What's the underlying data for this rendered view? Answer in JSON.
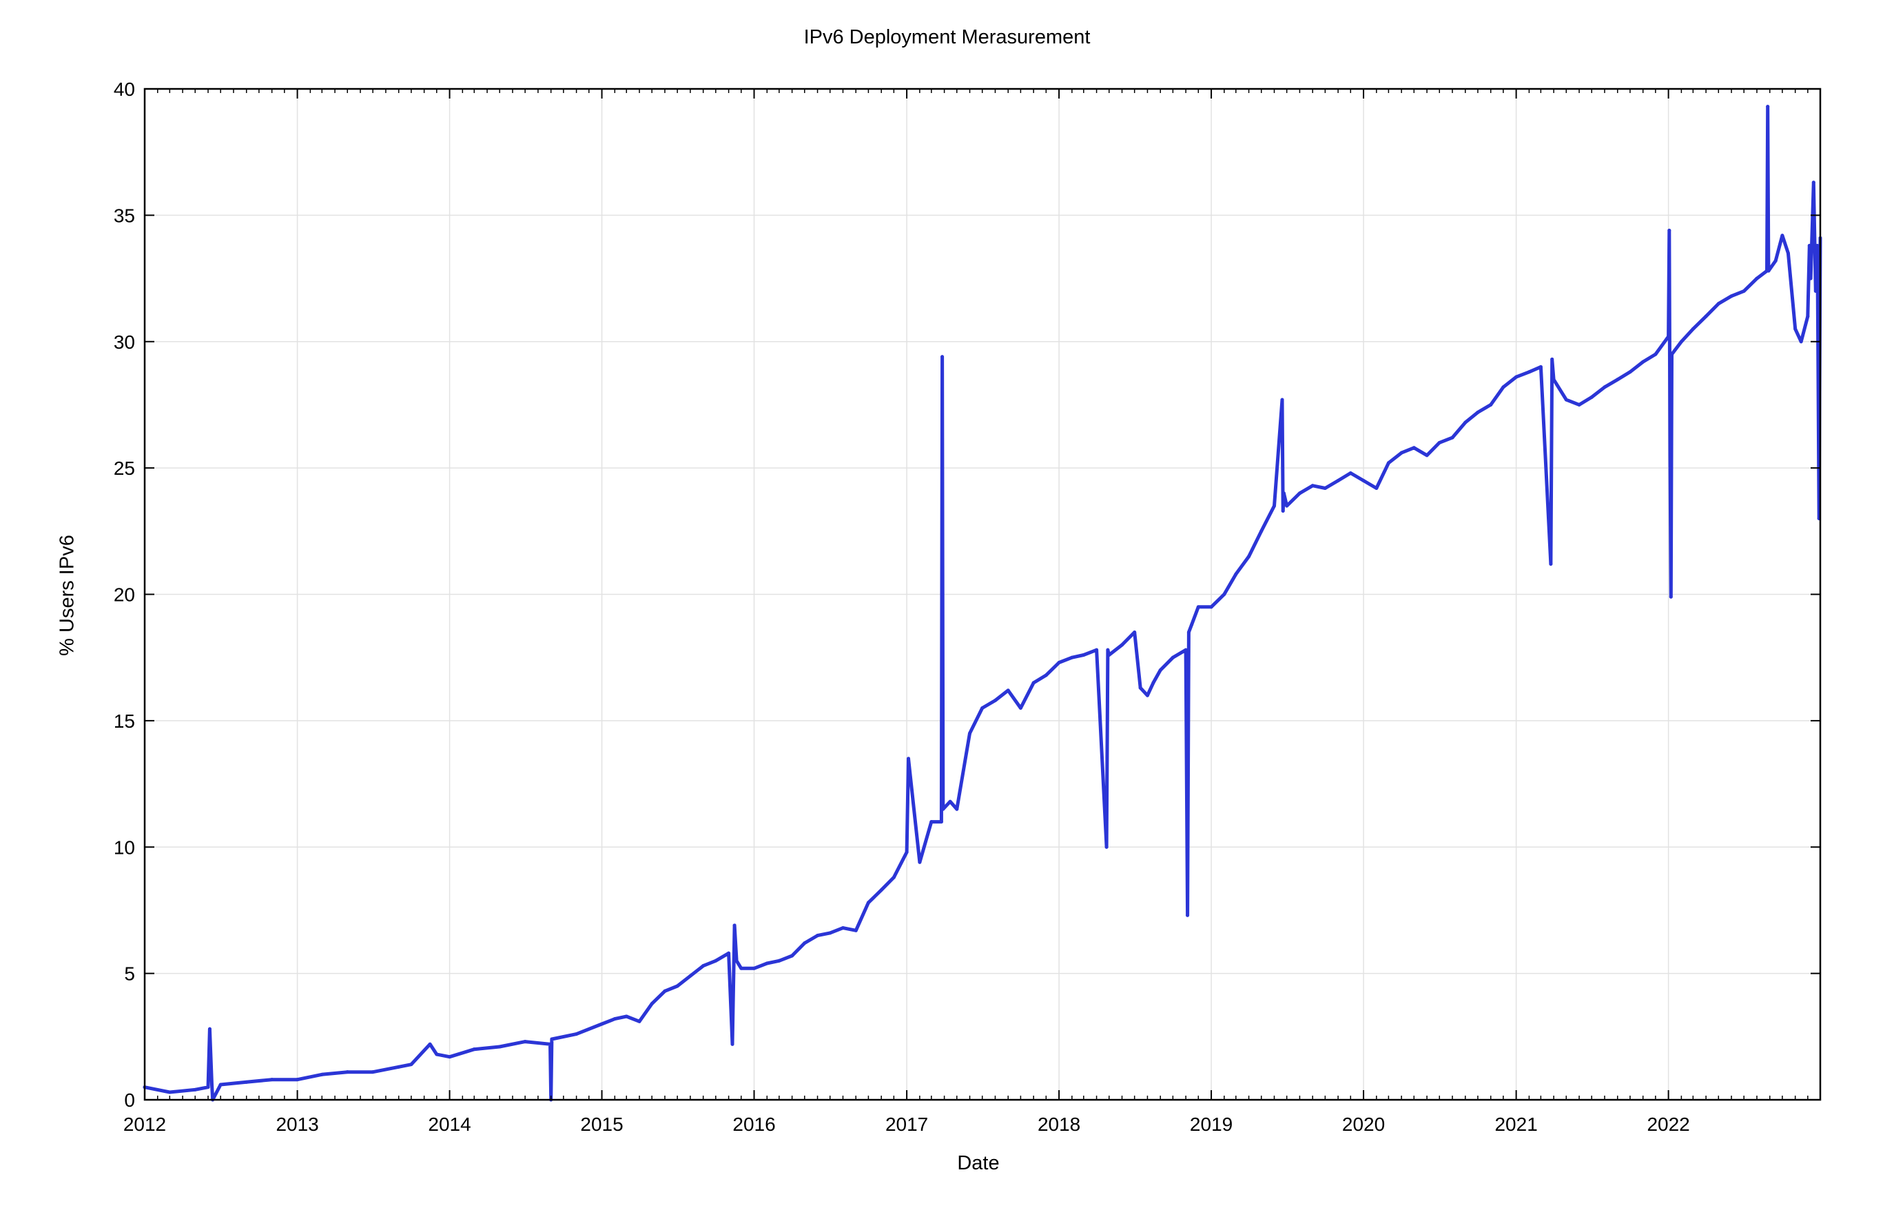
{
  "chart_data": {
    "type": "line",
    "title": "IPv6 Deployment Merasurement",
    "xlabel": "Date",
    "ylabel": "% Users IPv6",
    "xlim": [
      "2012-01-01",
      "2022-12-31"
    ],
    "ylim": [
      0,
      40
    ],
    "x_ticks": [
      "2012",
      "2013",
      "2014",
      "2015",
      "2016",
      "2017",
      "2018",
      "2019",
      "2020",
      "2021",
      "2022"
    ],
    "y_ticks": [
      "0",
      "5",
      "10",
      "15",
      "20",
      "25",
      "30",
      "35",
      "40"
    ],
    "grid": true,
    "legend": "none",
    "series_color": "#2b35d6",
    "series": [
      {
        "x": [
          "2012-01-01",
          "2012-03-01",
          "2012-05-01",
          "2012-06-01",
          "2012-06-05",
          "2012-06-10",
          "2012-06-12",
          "2012-07-01",
          "2012-09-01",
          "2012-11-01",
          "2013-01-01",
          "2013-03-01",
          "2013-05-01",
          "2013-07-01",
          "2013-09-01",
          "2013-10-01",
          "2013-11-15",
          "2013-12-01",
          "2014-01-01",
          "2014-03-01",
          "2014-05-01",
          "2014-07-01",
          "2014-08-30",
          "2014-09-01",
          "2014-09-03",
          "2014-11-01",
          "2015-01-01",
          "2015-02-01",
          "2015-03-01",
          "2015-04-01",
          "2015-05-01",
          "2015-06-01",
          "2015-07-01",
          "2015-08-01",
          "2015-09-01",
          "2015-10-01",
          "2015-11-01",
          "2015-11-10",
          "2015-11-15",
          "2015-11-20",
          "2015-12-01",
          "2016-01-01",
          "2016-02-01",
          "2016-03-01",
          "2016-04-01",
          "2016-05-01",
          "2016-06-01",
          "2016-07-01",
          "2016-08-01",
          "2016-09-01",
          "2016-10-01",
          "2016-11-01",
          "2016-12-01",
          "2017-01-01",
          "2017-01-05",
          "2017-02-01",
          "2017-03-01",
          "2017-03-25",
          "2017-03-27",
          "2017-03-29",
          "2017-04-15",
          "2017-05-01",
          "2017-06-01",
          "2017-07-01",
          "2017-08-01",
          "2017-09-01",
          "2017-10-01",
          "2017-11-01",
          "2017-12-01",
          "2018-01-01",
          "2018-02-01",
          "2018-03-01",
          "2018-04-01",
          "2018-04-25",
          "2018-04-28",
          "2018-05-01",
          "2018-06-01",
          "2018-07-01",
          "2018-07-15",
          "2018-08-01",
          "2018-08-15",
          "2018-09-01",
          "2018-10-01",
          "2018-11-01",
          "2018-11-05",
          "2018-11-08",
          "2018-11-15",
          "2018-12-01",
          "2019-01-01",
          "2019-02-01",
          "2019-03-01",
          "2019-04-01",
          "2019-05-01",
          "2019-06-01",
          "2019-06-20",
          "2019-06-22",
          "2019-06-24",
          "2019-07-01",
          "2019-08-01",
          "2019-09-01",
          "2019-10-01",
          "2019-11-01",
          "2019-12-01",
          "2020-01-01",
          "2020-02-01",
          "2020-03-01",
          "2020-04-01",
          "2020-05-01",
          "2020-06-01",
          "2020-07-01",
          "2020-08-01",
          "2020-09-01",
          "2020-10-01",
          "2020-11-01",
          "2020-12-01",
          "2021-01-01",
          "2021-02-01",
          "2021-03-01",
          "2021-03-25",
          "2021-03-28",
          "2021-04-01",
          "2021-05-01",
          "2021-06-01",
          "2021-07-01",
          "2021-08-01",
          "2021-09-01",
          "2021-10-01",
          "2021-11-01",
          "2021-12-01",
          "2022-01-01",
          "2022-01-03",
          "2022-01-05",
          "2022-01-07",
          "2022-01-09",
          "2022-02-01",
          "2022-03-01",
          "2022-04-01",
          "2022-05-01",
          "2022-06-01",
          "2022-07-01",
          "2022-08-01",
          "2022-08-25",
          "2022-08-27",
          "2022-08-29",
          "2022-09-15",
          "2022-10-01",
          "2022-10-15",
          "2022-11-01",
          "2022-11-15",
          "2022-12-01",
          "2022-12-05",
          "2022-12-08",
          "2022-12-15",
          "2022-12-20",
          "2022-12-24",
          "2022-12-28",
          "2022-12-31"
        ],
        "y": [
          0.5,
          0.3,
          0.4,
          0.5,
          2.8,
          0.6,
          0.0,
          0.6,
          0.7,
          0.8,
          0.8,
          1.0,
          1.1,
          1.1,
          1.3,
          1.4,
          2.2,
          1.8,
          1.7,
          2.0,
          2.1,
          2.3,
          2.2,
          0.0,
          2.4,
          2.6,
          3.0,
          3.2,
          3.3,
          3.1,
          3.8,
          4.3,
          4.5,
          4.9,
          5.3,
          5.5,
          5.8,
          2.2,
          6.9,
          5.5,
          5.2,
          5.2,
          5.4,
          5.5,
          5.7,
          6.2,
          6.5,
          6.6,
          6.8,
          6.7,
          7.8,
          8.3,
          8.8,
          9.8,
          13.5,
          9.4,
          11.0,
          11.0,
          29.4,
          11.5,
          11.8,
          11.5,
          14.5,
          15.5,
          15.8,
          16.2,
          15.5,
          16.5,
          16.8,
          17.3,
          17.5,
          17.6,
          17.8,
          10.0,
          17.8,
          17.6,
          18.0,
          18.5,
          16.3,
          16.0,
          16.5,
          17.0,
          17.5,
          17.8,
          7.3,
          18.5,
          18.8,
          19.5,
          19.5,
          20.0,
          20.8,
          21.5,
          22.5,
          23.5,
          27.7,
          23.3,
          24.0,
          23.5,
          24.0,
          24.3,
          24.2,
          24.5,
          24.8,
          24.5,
          24.2,
          25.2,
          25.6,
          25.8,
          25.5,
          26.0,
          26.2,
          26.8,
          27.2,
          27.5,
          28.2,
          28.6,
          28.8,
          29.0,
          21.2,
          29.3,
          28.5,
          27.7,
          27.5,
          27.8,
          28.2,
          28.5,
          28.8,
          29.2,
          29.5,
          30.2,
          34.4,
          25.5,
          19.9,
          29.5,
          30.0,
          30.5,
          31.0,
          31.5,
          31.8,
          32.0,
          32.5,
          32.8,
          39.3,
          32.8,
          33.2,
          34.2,
          33.5,
          30.5,
          30.0,
          31.0,
          33.8,
          32.5,
          36.3,
          32.0,
          33.8,
          23.0,
          34.1
        ]
      }
    ]
  }
}
